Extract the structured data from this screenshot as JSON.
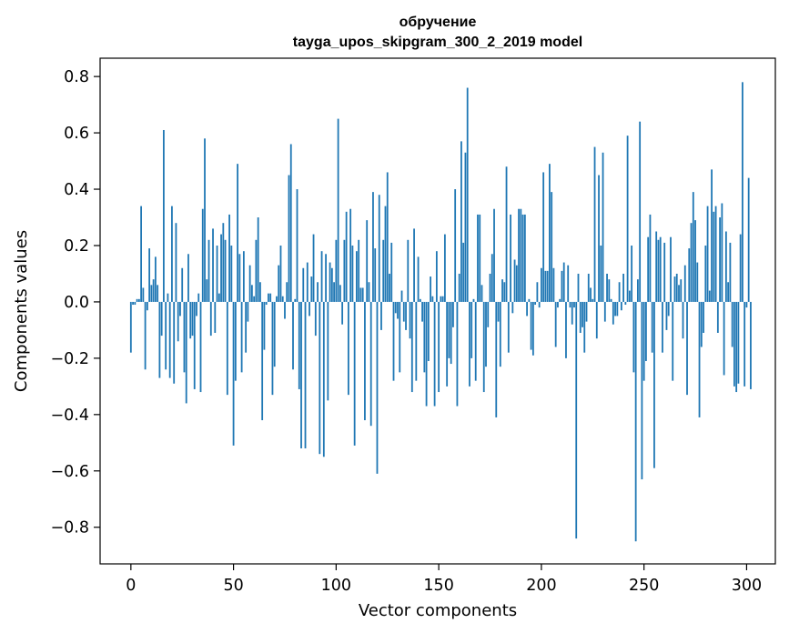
{
  "chart_data": {
    "type": "bar",
    "title_line1": "обручение",
    "title_line2": "tayga_upos_skipgram_300_2_2019 model",
    "xlabel": "Vector components",
    "ylabel": "Components values",
    "xlim": [
      -15,
      314
    ],
    "ylim": [
      -0.93,
      0.865
    ],
    "xticks": [
      0,
      50,
      100,
      150,
      200,
      250,
      300
    ],
    "xtick_labels": [
      "0",
      "50",
      "100",
      "150",
      "200",
      "250",
      "300"
    ],
    "yticks": [
      0.8,
      0.6,
      0.4,
      0.2,
      0.0,
      -0.2,
      -0.4,
      -0.6,
      -0.8
    ],
    "ytick_labels": [
      "0.8",
      "0.6",
      "0.4",
      "0.2",
      "0.0",
      "−0.2",
      "−0.4",
      "−0.6",
      "−0.8"
    ],
    "bar_color": "#1f77b4",
    "grid": false,
    "values": [
      -0.18,
      -0.01,
      -0.01,
      0.01,
      0.01,
      0.34,
      0.05,
      -0.24,
      -0.03,
      0.19,
      0.06,
      0.08,
      0.16,
      0.06,
      -0.27,
      -0.12,
      0.61,
      -0.24,
      0.03,
      -0.27,
      0.34,
      -0.29,
      0.28,
      -0.14,
      -0.05,
      0.12,
      -0.25,
      -0.36,
      0.17,
      -0.13,
      -0.12,
      -0.31,
      -0.05,
      0.03,
      -0.32,
      0.33,
      0.58,
      0.08,
      0.22,
      -0.12,
      0.26,
      -0.11,
      0.2,
      0.03,
      0.24,
      0.28,
      0.22,
      -0.33,
      0.31,
      0.2,
      -0.51,
      -0.28,
      0.49,
      0.17,
      -0.25,
      0.18,
      -0.18,
      -0.07,
      0.13,
      0.06,
      0.02,
      0.22,
      0.3,
      0.07,
      -0.42,
      -0.17,
      -0.01,
      0.03,
      0.03,
      -0.33,
      -0.23,
      0.02,
      0.13,
      0.2,
      0.02,
      -0.06,
      0.07,
      0.45,
      0.56,
      -0.24,
      0.01,
      0.4,
      -0.31,
      -0.52,
      0.12,
      -0.52,
      0.14,
      -0.05,
      0.09,
      0.24,
      -0.12,
      0.07,
      -0.54,
      0.18,
      -0.55,
      0.17,
      -0.35,
      0.14,
      0.12,
      0.07,
      0.22,
      0.65,
      0.06,
      -0.08,
      0.22,
      0.32,
      -0.33,
      0.33,
      0.2,
      -0.51,
      0.18,
      0.22,
      0.05,
      0.05,
      -0.42,
      0.29,
      0.07,
      -0.44,
      0.39,
      0.19,
      -0.61,
      0.38,
      -0.1,
      0.22,
      0.34,
      0.46,
      0.1,
      0.21,
      -0.28,
      -0.04,
      -0.06,
      -0.25,
      0.04,
      -0.07,
      -0.1,
      0.22,
      -0.13,
      -0.32,
      0.26,
      -0.28,
      0.16,
      0.01,
      -0.07,
      -0.25,
      -0.37,
      -0.21,
      0.09,
      0.02,
      -0.37,
      0.18,
      -0.32,
      0.02,
      0.02,
      0.24,
      -0.3,
      -0.2,
      -0.22,
      -0.09,
      0.4,
      -0.37,
      0.1,
      0.57,
      0.21,
      0.53,
      0.76,
      -0.3,
      -0.2,
      0.01,
      -0.28,
      0.31,
      0.31,
      0.06,
      -0.32,
      -0.23,
      -0.09,
      0.1,
      0.17,
      0.33,
      -0.41,
      -0.07,
      -0.23,
      0.08,
      0.07,
      0.48,
      -0.18,
      0.31,
      -0.04,
      0.15,
      0.13,
      0.33,
      0.33,
      0.31,
      0.31,
      -0.05,
      0.01,
      -0.17,
      -0.19,
      -0.01,
      0.07,
      -0.02,
      0.12,
      0.46,
      0.11,
      0.11,
      0.49,
      0.39,
      0.12,
      -0.16,
      -0.02,
      0.01,
      0.11,
      0.14,
      -0.2,
      0.13,
      -0.02,
      -0.08,
      -0.02,
      -0.84,
      0.1,
      -0.11,
      -0.09,
      -0.18,
      -0.07,
      0.1,
      0.05,
      0.01,
      0.55,
      -0.13,
      0.45,
      0.2,
      0.53,
      -0.07,
      0.1,
      0.08,
      0.01,
      -0.08,
      -0.05,
      -0.05,
      0.07,
      -0.03,
      0.1,
      -0.01,
      0.59,
      0.04,
      0.2,
      -0.25,
      -0.85,
      0.08,
      0.64,
      -0.63,
      -0.28,
      -0.21,
      0.23,
      0.31,
      -0.18,
      -0.59,
      0.25,
      0.22,
      0.23,
      -0.18,
      0.21,
      -0.1,
      -0.05,
      0.23,
      -0.28,
      0.09,
      0.1,
      0.06,
      0.08,
      -0.13,
      0.13,
      -0.33,
      0.19,
      0.28,
      0.39,
      0.29,
      0.14,
      -0.41,
      -0.16,
      -0.11,
      0.2,
      0.34,
      0.04,
      0.47,
      0.32,
      0.34,
      -0.11,
      0.3,
      0.35,
      -0.26,
      0.25,
      0.07,
      0.21,
      -0.16,
      -0.3,
      -0.32,
      -0.29,
      0.24,
      0.78,
      -0.3,
      -0.02,
      0.44,
      -0.31
    ]
  }
}
